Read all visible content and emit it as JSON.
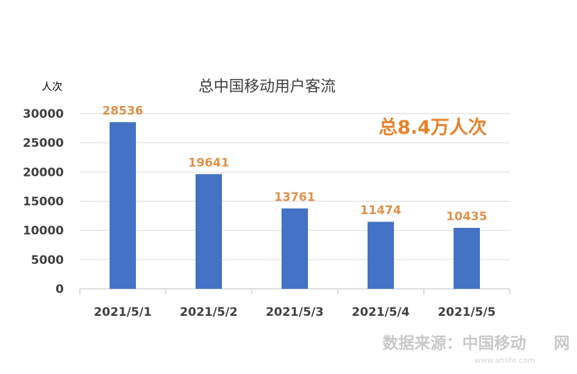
{
  "chart_data": {
    "type": "bar",
    "title": "总中国移动用户客流",
    "ylabel": "人次",
    "xlabel": "",
    "categories": [
      "2021/5/1",
      "2021/5/2",
      "2021/5/3",
      "2021/5/4",
      "2021/5/5"
    ],
    "values": [
      28536,
      19641,
      13761,
      11474,
      10435
    ],
    "data_labels": [
      "28536",
      "19641",
      "13761",
      "11474",
      "10435"
    ],
    "ylim": [
      0,
      30000
    ],
    "yticks": [
      0,
      5000,
      10000,
      15000,
      20000,
      25000,
      30000
    ],
    "ytick_labels": [
      "0",
      "5000",
      "10000",
      "15000",
      "20000",
      "25000",
      "30000"
    ],
    "grid": true,
    "legend": "none",
    "bar_color": "#4472C4",
    "data_label_color": "#E0904A",
    "annotation": "总8.4万人次",
    "annotation_color": "#E5822C"
  },
  "footer": {
    "source": "数据来源：中国移动",
    "watermark_char": "网",
    "watermark_url": "www.ahlife.com"
  }
}
